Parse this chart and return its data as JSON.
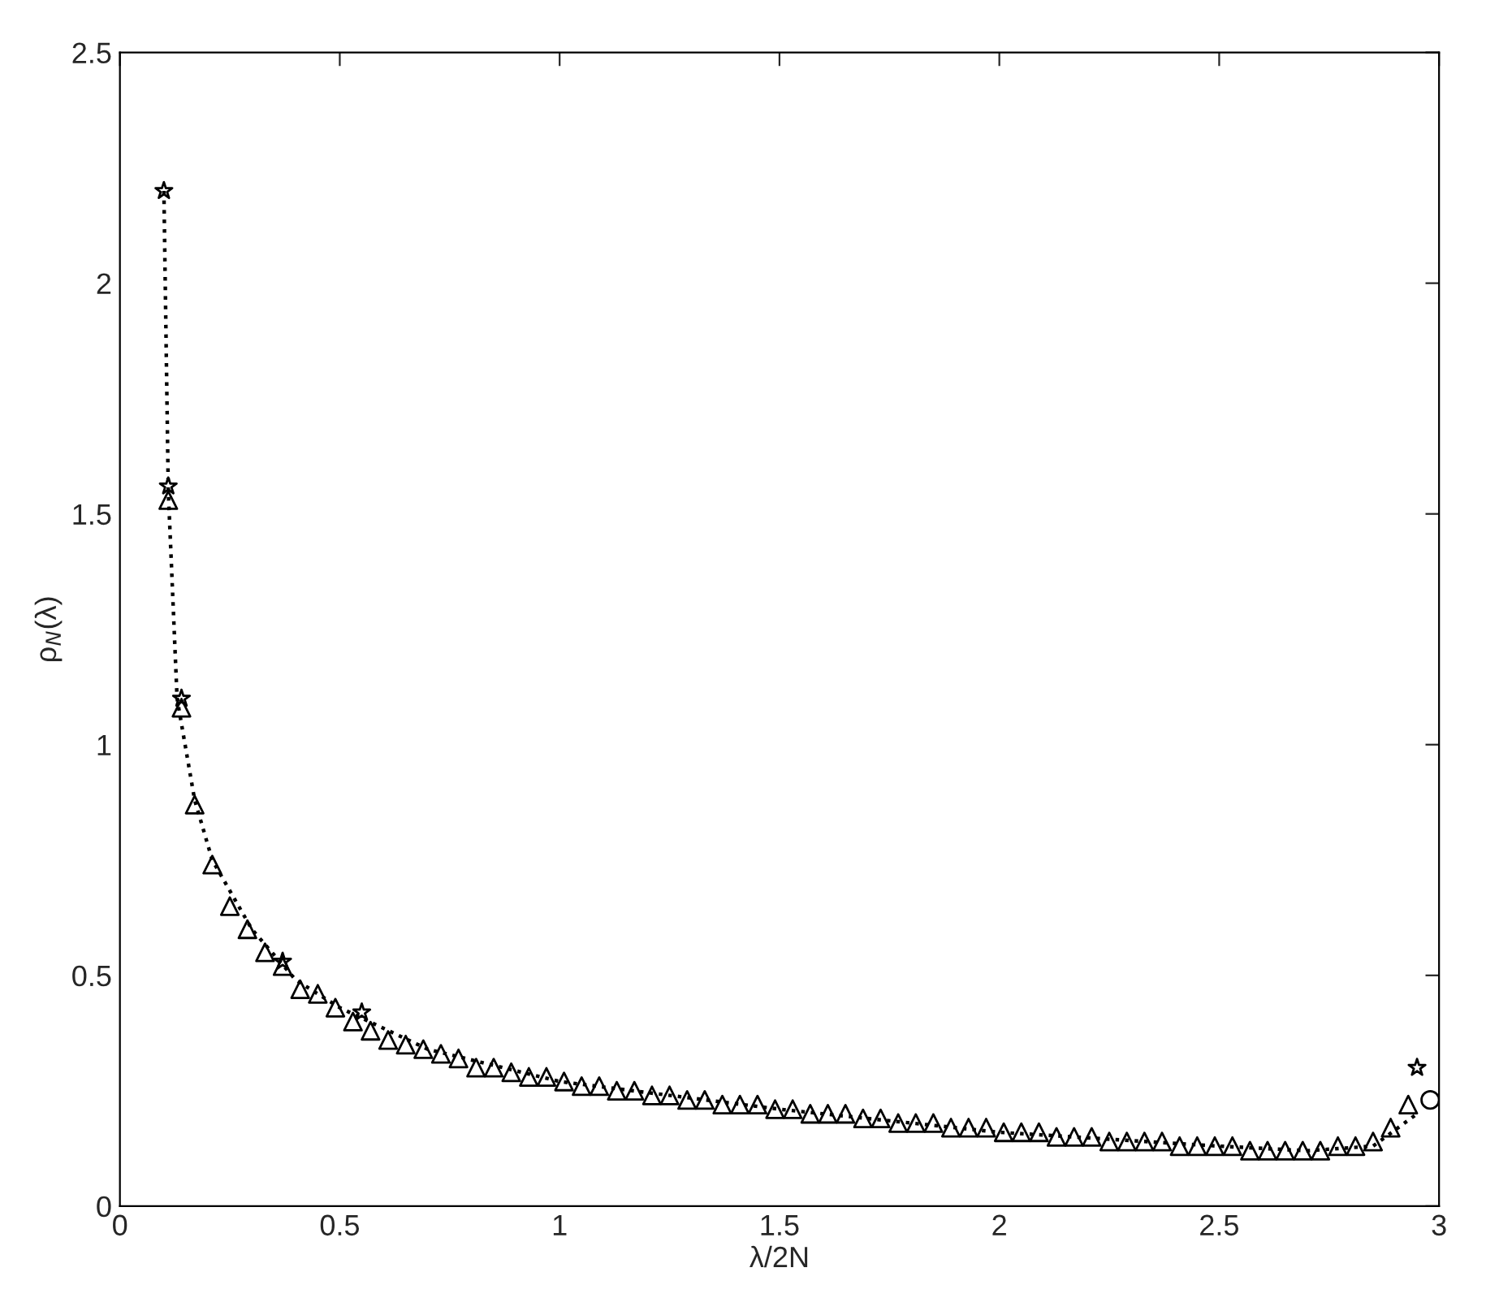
{
  "chart_data": {
    "type": "scatter",
    "xlabel": "λ/2N",
    "ylabel": "ρ$_{N}$(λ)",
    "xlim": [
      0,
      3
    ],
    "ylim": [
      0,
      2.5
    ],
    "xticks": [
      0,
      0.5,
      1,
      1.5,
      2,
      2.5,
      3
    ],
    "yticks": [
      0,
      0.5,
      1,
      1.5,
      2,
      2.5
    ],
    "grid": false,
    "legend": false,
    "series": [
      {
        "type": "line",
        "line_style": "dotted",
        "marker": "none",
        "color": "#000000",
        "x": [
          0.1,
          0.11,
          0.13,
          0.17,
          0.21,
          0.3,
          0.4,
          0.5,
          0.7,
          1.0,
          1.5,
          2.0,
          2.5,
          2.7,
          2.85,
          2.95
        ],
        "values": [
          2.2,
          1.55,
          1.1,
          0.88,
          0.75,
          0.6,
          0.49,
          0.43,
          0.34,
          0.27,
          0.21,
          0.16,
          0.13,
          0.12,
          0.13,
          0.2
        ]
      },
      {
        "marker": "triangle",
        "color": "#000000",
        "x": [
          0.11,
          0.14,
          0.17,
          0.21,
          0.25,
          0.29,
          0.33,
          0.37,
          0.41,
          0.45,
          0.49,
          0.53,
          0.57,
          0.61,
          0.65,
          0.69,
          0.73,
          0.77,
          0.81,
          0.85,
          0.89,
          0.93,
          0.97,
          1.01,
          1.05,
          1.09,
          1.13,
          1.17,
          1.21,
          1.25,
          1.29,
          1.33,
          1.37,
          1.41,
          1.45,
          1.49,
          1.53,
          1.57,
          1.61,
          1.65,
          1.69,
          1.73,
          1.77,
          1.81,
          1.85,
          1.89,
          1.93,
          1.97,
          2.01,
          2.05,
          2.09,
          2.13,
          2.17,
          2.21,
          2.25,
          2.29,
          2.33,
          2.37,
          2.41,
          2.45,
          2.49,
          2.53,
          2.57,
          2.61,
          2.65,
          2.69,
          2.73,
          2.77,
          2.81,
          2.85,
          2.89,
          2.93
        ],
        "values": [
          1.53,
          1.08,
          0.87,
          0.74,
          0.65,
          0.6,
          0.55,
          0.52,
          0.47,
          0.46,
          0.43,
          0.4,
          0.38,
          0.36,
          0.35,
          0.34,
          0.33,
          0.32,
          0.3,
          0.3,
          0.29,
          0.28,
          0.28,
          0.27,
          0.26,
          0.26,
          0.25,
          0.25,
          0.24,
          0.24,
          0.23,
          0.23,
          0.22,
          0.22,
          0.22,
          0.21,
          0.21,
          0.2,
          0.2,
          0.2,
          0.19,
          0.19,
          0.18,
          0.18,
          0.18,
          0.17,
          0.17,
          0.17,
          0.16,
          0.16,
          0.16,
          0.15,
          0.15,
          0.15,
          0.14,
          0.14,
          0.14,
          0.14,
          0.13,
          0.13,
          0.13,
          0.13,
          0.12,
          0.12,
          0.12,
          0.12,
          0.12,
          0.13,
          0.13,
          0.14,
          0.17,
          0.22
        ]
      },
      {
        "marker": "star",
        "color": "#000000",
        "x": [
          0.1,
          0.11,
          0.14,
          0.37,
          0.55,
          2.95
        ],
        "values": [
          2.2,
          1.56,
          1.1,
          0.53,
          0.42,
          0.3
        ]
      },
      {
        "marker": "circle",
        "color": "#000000",
        "x": [
          2.98
        ],
        "values": [
          0.23
        ]
      }
    ]
  }
}
